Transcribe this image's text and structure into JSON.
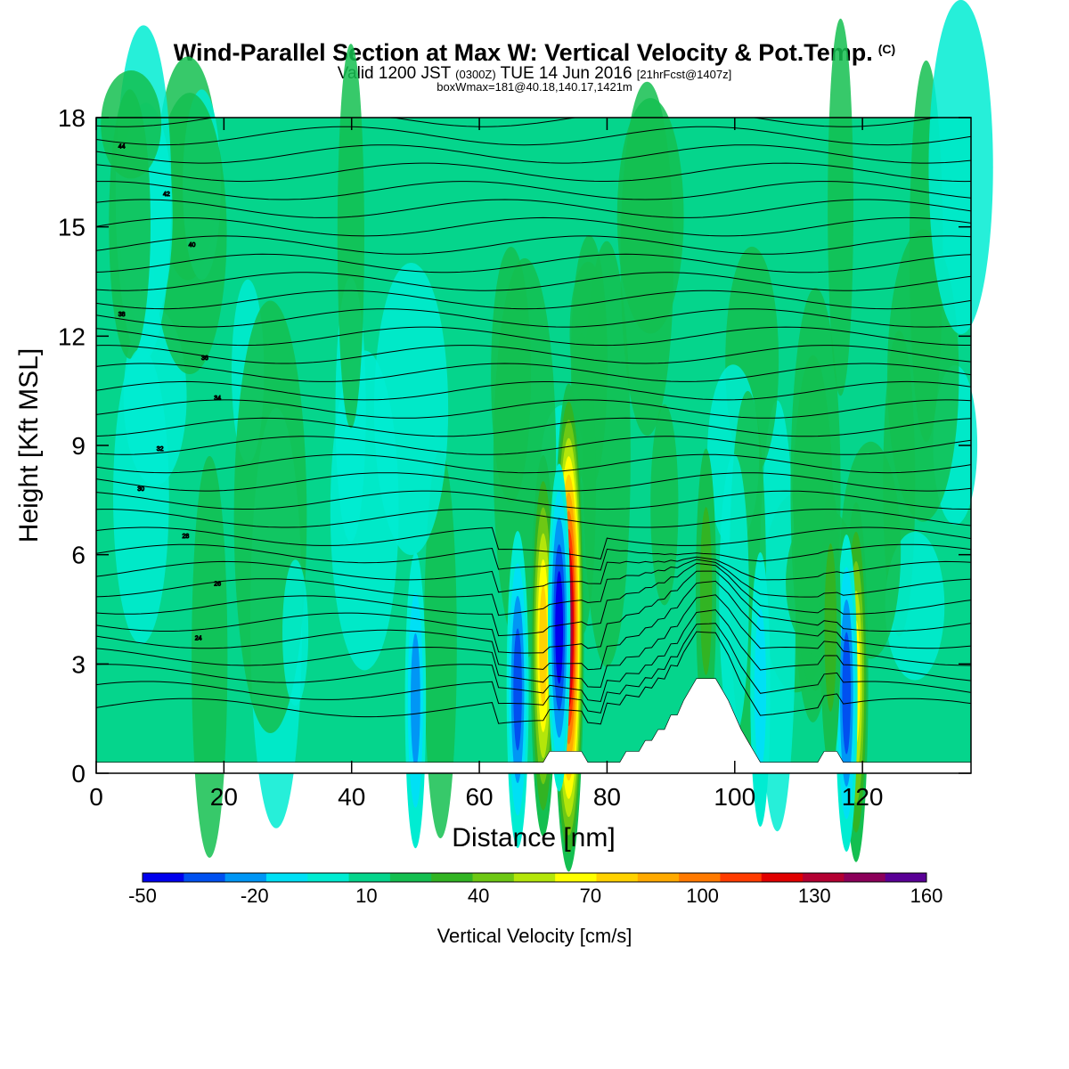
{
  "header": {
    "title": "Wind-Parallel Section at Max W: Vertical Velocity & Pot.Temp.",
    "title_mark": "(C)",
    "valid_prefix": "Valid 1200 JST",
    "valid_zulu": "(0300Z)",
    "valid_date": "TUE 14 Jun 2016",
    "forecast": "[21hrFcst@1407z]",
    "box_info": "boxWmax=181@40.18,140.17,1421m"
  },
  "chart_data": {
    "type": "heatmap",
    "xlabel": "Distance [nm]",
    "ylabel": "Height [Kft MSL]",
    "xlim": [
      0,
      137
    ],
    "ylim": [
      0,
      18
    ],
    "x_ticks": [
      0,
      20,
      40,
      60,
      80,
      100,
      120
    ],
    "y_ticks": [
      0,
      3,
      6,
      9,
      12,
      15,
      18
    ],
    "colorbar": {
      "label": "Vertical Velocity [cm/s]",
      "min": -50,
      "max": 160,
      "step": 10,
      "tick_labels": [
        "-50",
        "-20",
        "10",
        "40",
        "70",
        "100",
        "130",
        "160"
      ],
      "colors": [
        "#0000ee",
        "#0050f0",
        "#0096f5",
        "#00e0f5",
        "#00ecd2",
        "#05d58c",
        "#14bf50",
        "#32b423",
        "#6ec814",
        "#b4e60a",
        "#ffff00",
        "#ffd200",
        "#ffaa00",
        "#ff7a00",
        "#ff3c00",
        "#e10000",
        "#b40032",
        "#8c005a",
        "#5a0096"
      ]
    },
    "theta_contour_labels": [
      "44",
      "42",
      "40",
      "38",
      "36",
      "34",
      "32",
      "30",
      "28",
      "26",
      "24"
    ],
    "terrain_kft": [
      [
        0,
        0.3
      ],
      [
        61,
        0.3
      ],
      [
        70,
        0.3
      ],
      [
        71,
        0.6
      ],
      [
        76,
        0.6
      ],
      [
        77,
        0.3
      ],
      [
        82,
        0.3
      ],
      [
        83,
        0.6
      ],
      [
        85,
        0.6
      ],
      [
        86,
        0.9
      ],
      [
        87,
        0.9
      ],
      [
        88,
        1.2
      ],
      [
        89,
        1.2
      ],
      [
        90,
        1.6
      ],
      [
        91,
        1.6
      ],
      [
        92,
        2.0
      ],
      [
        93,
        2.3
      ],
      [
        94,
        2.6
      ],
      [
        97,
        2.6
      ],
      [
        98,
        2.3
      ],
      [
        99,
        2.0
      ],
      [
        100,
        1.6
      ],
      [
        101,
        1.2
      ],
      [
        102,
        0.9
      ],
      [
        103,
        0.6
      ],
      [
        104,
        0.3
      ],
      [
        113,
        0.3
      ],
      [
        114,
        0.6
      ],
      [
        116,
        0.6
      ],
      [
        117,
        0.3
      ],
      [
        137,
        0.3
      ]
    ],
    "velocity_features": [
      {
        "x": 74,
        "h": 4.0,
        "w": 120
      },
      {
        "x": 70,
        "h": 3.5,
        "w": 70
      },
      {
        "x": 72.5,
        "h": 4.0,
        "w": -45
      },
      {
        "x": 66,
        "h": 2.3,
        "w": -40
      },
      {
        "x": 119,
        "h": 2.5,
        "w": 60
      },
      {
        "x": 117.5,
        "h": 2.2,
        "w": -40
      },
      {
        "x": 95.5,
        "h": 5.0,
        "w": 25
      },
      {
        "x": 115,
        "h": 4.0,
        "w": 25
      },
      {
        "x": 50,
        "h": 2.0,
        "w": -30
      },
      {
        "x": 104,
        "h": 2.3,
        "w": -20
      }
    ]
  }
}
